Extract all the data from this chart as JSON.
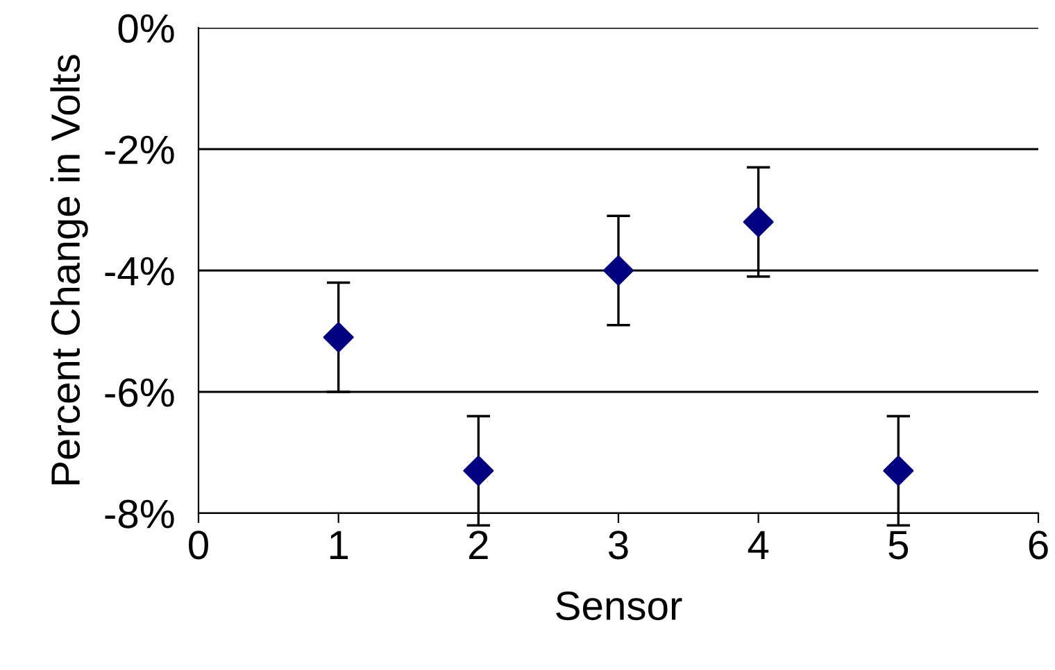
{
  "chart_data": {
    "type": "scatter",
    "xlabel": "Sensor",
    "ylabel": "Percent Change in Volts",
    "x": [
      1,
      2,
      3,
      4,
      5
    ],
    "series": [
      {
        "color": "#000080",
        "values": [
          -5.1,
          -7.3,
          -4.0,
          -3.2,
          -7.3
        ],
        "errors": [
          0.9,
          0.9,
          0.9,
          0.9,
          0.9
        ]
      }
    ],
    "xlim": [
      0,
      6
    ],
    "xticks": [
      0,
      1,
      2,
      3,
      4,
      5,
      6
    ],
    "ylim": [
      -8,
      0
    ],
    "yticks": [
      {
        "value": -8,
        "label": "-8%"
      },
      {
        "value": -6,
        "label": "-6%"
      },
      {
        "value": -4,
        "label": "-4%"
      },
      {
        "value": -2,
        "label": "-2%"
      },
      {
        "value": 0,
        "label": "0%"
      }
    ],
    "grid": "y",
    "marker": "diamond"
  }
}
